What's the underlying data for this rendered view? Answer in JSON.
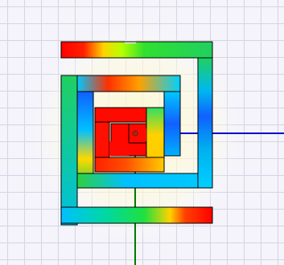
{
  "viewport": {
    "description_colors": {
      "background": "#f4f4fa",
      "grid": "#d4d4e6",
      "x_axis": "#0000c8",
      "y_axis": "#007a00"
    }
  },
  "coil": {
    "field_scale_colors": [
      "#0050ff",
      "#00c8ff",
      "#00e070",
      "#ffff00",
      "#ff0000"
    ]
  },
  "origin_marker_icon": "origin-marker-icon"
}
